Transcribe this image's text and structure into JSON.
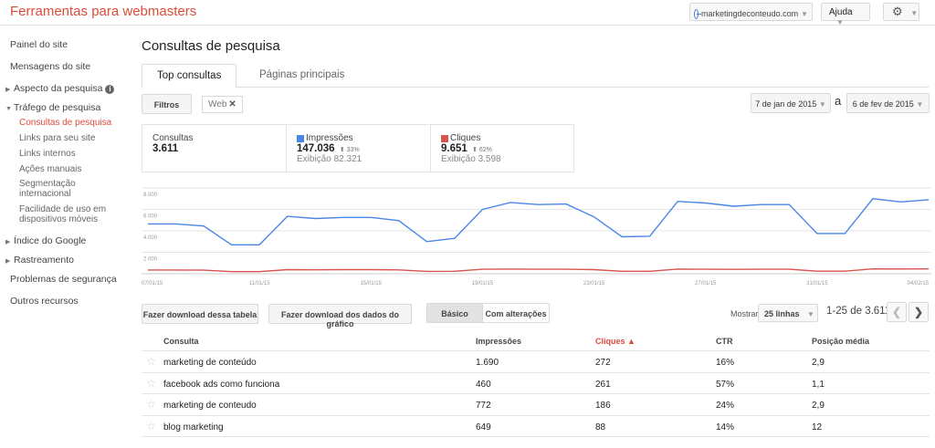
{
  "app": {
    "title": "Ferramentas para webmasters"
  },
  "header": {
    "site": "marketingdeconteudo.com",
    "help": "Ajuda"
  },
  "sidebar": {
    "items": [
      {
        "label": "Painel do site"
      },
      {
        "label": "Mensagens do site"
      },
      {
        "label": "Aspecto da pesquisa"
      },
      {
        "label": "Tráfego de pesquisa"
      },
      {
        "label": "Índice do Google"
      },
      {
        "label": "Rastreamento"
      },
      {
        "label": "Problemas de segurança"
      },
      {
        "label": "Outros recursos"
      }
    ],
    "traffic_sub": [
      {
        "label": "Consultas de pesquisa"
      },
      {
        "label": "Links para seu site"
      },
      {
        "label": "Links internos"
      },
      {
        "label": "Ações manuais"
      },
      {
        "label": "Segmentação internacional"
      },
      {
        "label": "Facilidade de uso em dispositivos móveis"
      }
    ]
  },
  "main": {
    "title": "Consultas de pesquisa",
    "tabs": [
      {
        "label": "Top consultas"
      },
      {
        "label": "Páginas principais"
      }
    ],
    "filters_label": "Filtros",
    "filter_chip": "Web",
    "date_from": "7 de jan de 2015",
    "date_sep": "a",
    "date_to": "6 de fev de 2015"
  },
  "metrics": {
    "queries": {
      "label": "Consultas",
      "value": "3.611"
    },
    "impressions": {
      "label": "Impressões",
      "value": "147.036",
      "change": "33%",
      "sub": "Exibição 82.321",
      "color": "#4a86e8"
    },
    "clicks": {
      "label": "Cliques",
      "value": "9.651",
      "change": "62%",
      "sub": "Exibição 3.598",
      "color": "#d9534f"
    }
  },
  "chart_data": {
    "type": "line",
    "x": [
      "07/01/15",
      "08/01/15",
      "09/01/15",
      "10/01/15",
      "11/01/15",
      "12/01/15",
      "13/01/15",
      "14/01/15",
      "15/01/15",
      "16/01/15",
      "17/01/15",
      "18/01/15",
      "19/01/15",
      "20/01/15",
      "21/01/15",
      "22/01/15",
      "23/01/15",
      "24/01/15",
      "25/01/15",
      "26/01/15",
      "27/01/15",
      "28/01/15",
      "29/01/15",
      "30/01/15",
      "31/01/15",
      "01/02/15",
      "02/02/15",
      "03/02/15",
      "04/02/15"
    ],
    "x_tick_labels": [
      "07/01/15",
      "11/01/15",
      "15/01/15",
      "19/01/15",
      "23/01/15",
      "27/01/15",
      "31/01/15",
      "04/02/15"
    ],
    "y_ticks": [
      "8.000",
      "6.000",
      "4.000",
      "2.000"
    ],
    "ylim": [
      0,
      8000
    ],
    "series": [
      {
        "name": "Impressões",
        "color": "#4a86e8",
        "values": [
          4650,
          4650,
          4450,
          2700,
          2700,
          5350,
          5150,
          5250,
          5250,
          4950,
          3000,
          3300,
          6000,
          6650,
          6450,
          6500,
          5300,
          3450,
          3500,
          6750,
          6600,
          6300,
          6450,
          6450,
          3750,
          3750,
          7000,
          6700,
          6900
        ]
      },
      {
        "name": "Cliques",
        "color": "#d9534f",
        "values": [
          350,
          350,
          330,
          200,
          200,
          380,
          370,
          380,
          380,
          360,
          220,
          230,
          420,
          430,
          420,
          420,
          380,
          230,
          230,
          430,
          420,
          410,
          420,
          420,
          240,
          240,
          450,
          440,
          450
        ]
      }
    ]
  },
  "toolbar": {
    "download_table": "Fazer download dessa tabela",
    "download_chart": "Fazer download dos dados do gráfico",
    "basic": "Básico",
    "with_changes": "Com alterações",
    "show_label": "Mostrar",
    "rows_value": "25 linhas",
    "range": "1-25 de 3.611"
  },
  "table": {
    "headers": [
      "Consulta",
      "Impressões",
      "Cliques",
      "CTR",
      "Posição média"
    ],
    "rows": [
      [
        "marketing de conteúdo",
        "1.690",
        "272",
        "16%",
        "2,9"
      ],
      [
        "facebook ads como funciona",
        "460",
        "261",
        "57%",
        "1,1"
      ],
      [
        "marketing de conteudo",
        "772",
        "186",
        "24%",
        "2,9"
      ],
      [
        "blog marketing",
        "649",
        "88",
        "14%",
        "12"
      ]
    ]
  }
}
